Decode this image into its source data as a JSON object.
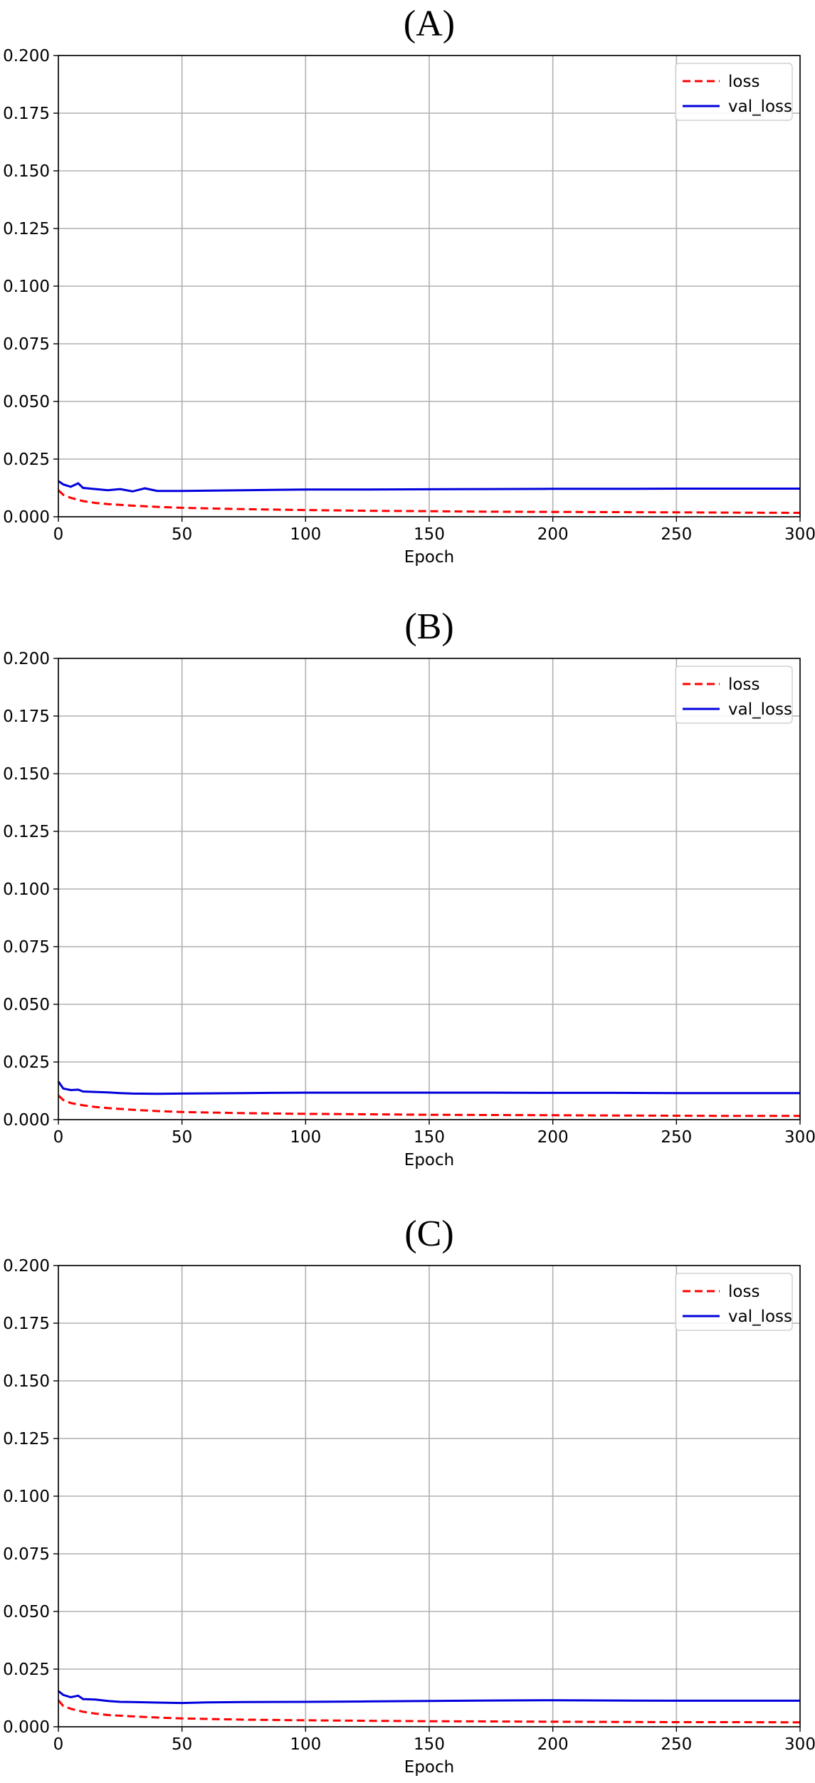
{
  "chart_data": [
    {
      "type": "line",
      "title": "(A)",
      "xlabel": "Epoch",
      "ylabel": "",
      "xlim": [
        0,
        300
      ],
      "ylim": [
        0,
        0.2
      ],
      "xticks": [
        "0",
        "50",
        "100",
        "150",
        "200",
        "250",
        "300"
      ],
      "yticks": [
        "0.000",
        "0.025",
        "0.050",
        "0.075",
        "0.100",
        "0.125",
        "0.150",
        "0.175",
        "0.200"
      ],
      "grid": true,
      "legend": "top-right",
      "series": [
        {
          "name": "loss",
          "color": "#ff0000",
          "style": "dashed",
          "x": [
            0,
            2,
            5,
            10,
            15,
            20,
            30,
            40,
            50,
            75,
            100,
            125,
            150,
            175,
            200,
            225,
            250,
            275,
            300
          ],
          "y": [
            0.0115,
            0.0095,
            0.0082,
            0.0068,
            0.006,
            0.0055,
            0.0048,
            0.0043,
            0.0039,
            0.0033,
            0.0029,
            0.0026,
            0.0024,
            0.0022,
            0.0021,
            0.002,
            0.0019,
            0.0018,
            0.0017
          ]
        },
        {
          "name": "val_loss",
          "color": "#0000dd",
          "style": "solid",
          "x": [
            0,
            2,
            5,
            8,
            10,
            15,
            20,
            25,
            30,
            35,
            40,
            50,
            75,
            100,
            125,
            150,
            175,
            200,
            225,
            250,
            275,
            300
          ],
          "y": [
            0.0155,
            0.014,
            0.013,
            0.0145,
            0.0125,
            0.012,
            0.0115,
            0.012,
            0.011,
            0.0123,
            0.0112,
            0.0112,
            0.0115,
            0.0118,
            0.0118,
            0.0119,
            0.012,
            0.0121,
            0.0121,
            0.0122,
            0.0122,
            0.0122
          ]
        }
      ]
    },
    {
      "type": "line",
      "title": "(B)",
      "xlabel": "Epoch",
      "ylabel": "",
      "xlim": [
        0,
        300
      ],
      "ylim": [
        0,
        0.2
      ],
      "xticks": [
        "0",
        "50",
        "100",
        "150",
        "200",
        "250",
        "300"
      ],
      "yticks": [
        "0.000",
        "0.025",
        "0.050",
        "0.075",
        "0.100",
        "0.125",
        "0.150",
        "0.175",
        "0.200"
      ],
      "grid": true,
      "legend": "top-right",
      "series": [
        {
          "name": "loss",
          "color": "#ff0000",
          "style": "dashed",
          "x": [
            0,
            2,
            5,
            10,
            15,
            20,
            30,
            40,
            50,
            75,
            100,
            125,
            150,
            175,
            200,
            225,
            250,
            275,
            300
          ],
          "y": [
            0.0105,
            0.0085,
            0.0072,
            0.0062,
            0.0055,
            0.005,
            0.0043,
            0.0037,
            0.0033,
            0.0028,
            0.0025,
            0.0023,
            0.0021,
            0.002,
            0.0019,
            0.0018,
            0.0017,
            0.0016,
            0.0016
          ]
        },
        {
          "name": "val_loss",
          "color": "#0000dd",
          "style": "solid",
          "x": [
            0,
            2,
            5,
            8,
            10,
            15,
            20,
            25,
            30,
            40,
            50,
            75,
            100,
            125,
            150,
            175,
            200,
            225,
            250,
            275,
            300
          ],
          "y": [
            0.0165,
            0.0135,
            0.0128,
            0.013,
            0.0122,
            0.012,
            0.0118,
            0.0115,
            0.0113,
            0.0112,
            0.0113,
            0.0115,
            0.0117,
            0.0117,
            0.0117,
            0.0117,
            0.0116,
            0.0116,
            0.0115,
            0.0115,
            0.0115
          ]
        }
      ]
    },
    {
      "type": "line",
      "title": "(C)",
      "xlabel": "Epoch",
      "ylabel": "",
      "xlim": [
        0,
        300
      ],
      "ylim": [
        0,
        0.2
      ],
      "xticks": [
        "0",
        "50",
        "100",
        "150",
        "200",
        "250",
        "300"
      ],
      "yticks": [
        "0.000",
        "0.025",
        "0.050",
        "0.075",
        "0.100",
        "0.125",
        "0.150",
        "0.175",
        "0.200"
      ],
      "grid": true,
      "legend": "top-right",
      "series": [
        {
          "name": "loss",
          "color": "#ff0000",
          "style": "dashed",
          "x": [
            0,
            2,
            5,
            10,
            15,
            20,
            30,
            40,
            50,
            75,
            100,
            125,
            150,
            175,
            200,
            225,
            250,
            275,
            300
          ],
          "y": [
            0.0115,
            0.009,
            0.0078,
            0.0065,
            0.0057,
            0.0051,
            0.0045,
            0.004,
            0.0036,
            0.0031,
            0.0028,
            0.0026,
            0.0024,
            0.0023,
            0.0022,
            0.0021,
            0.002,
            0.002,
            0.0019
          ]
        },
        {
          "name": "val_loss",
          "color": "#0000dd",
          "style": "solid",
          "x": [
            0,
            2,
            5,
            8,
            10,
            15,
            20,
            25,
            30,
            40,
            50,
            60,
            75,
            100,
            125,
            150,
            175,
            200,
            225,
            250,
            275,
            300
          ],
          "y": [
            0.0155,
            0.0138,
            0.0128,
            0.0135,
            0.012,
            0.0118,
            0.0112,
            0.0108,
            0.0107,
            0.0105,
            0.0103,
            0.0106,
            0.0107,
            0.0108,
            0.011,
            0.0112,
            0.0114,
            0.0115,
            0.0114,
            0.0113,
            0.0113,
            0.0113
          ]
        }
      ]
    }
  ]
}
